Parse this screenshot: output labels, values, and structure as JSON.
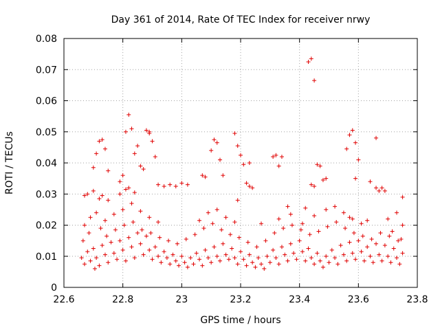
{
  "chart_data": {
    "type": "scatter",
    "title": "Day 361 of 2014, Rate Of TEC Index for receiver nrwy",
    "xlabel": "GPS time / hours",
    "ylabel": "ROTI / TECUs",
    "xlim": [
      22.6,
      23.8
    ],
    "ylim": [
      0,
      0.08
    ],
    "xticks": [
      22.6,
      22.8,
      23.0,
      23.2,
      23.4,
      23.6,
      23.8
    ],
    "xtick_labels": [
      "22.6",
      "22.8",
      "23",
      "23.2",
      "23.4",
      "23.6",
      "23.8"
    ],
    "yticks": [
      0,
      0.01,
      0.02,
      0.03,
      0.04,
      0.05,
      0.06,
      0.07,
      0.08
    ],
    "ytick_labels": [
      "0",
      "0.01",
      "0.02",
      "0.03",
      "0.04",
      "0.05",
      "0.06",
      "0.07",
      "0.08"
    ],
    "grid": true,
    "marker": "+",
    "color": "#e00000",
    "series": [
      {
        "name": "ROTI",
        "points": [
          [
            22.66,
            0.0095
          ],
          [
            22.67,
            0.0075
          ],
          [
            22.68,
            0.0115
          ],
          [
            22.69,
            0.0085
          ],
          [
            22.7,
            0.0125
          ],
          [
            22.71,
            0.0095
          ],
          [
            22.72,
            0.007
          ],
          [
            22.73,
            0.0135
          ],
          [
            22.74,
            0.0105
          ],
          [
            22.75,
            0.008
          ],
          [
            22.76,
            0.0145
          ],
          [
            22.77,
            0.011
          ],
          [
            22.78,
            0.009
          ],
          [
            22.79,
            0.015
          ],
          [
            22.8,
            0.012
          ],
          [
            22.81,
            0.0085
          ],
          [
            22.82,
            0.016
          ],
          [
            22.83,
            0.013
          ],
          [
            22.84,
            0.0095
          ],
          [
            22.85,
            0.0175
          ],
          [
            22.86,
            0.014
          ],
          [
            22.87,
            0.0105
          ],
          [
            22.88,
            0.0165
          ],
          [
            22.89,
            0.012
          ],
          [
            22.9,
            0.009
          ],
          [
            22.91,
            0.013
          ],
          [
            22.92,
            0.01
          ],
          [
            22.93,
            0.008
          ],
          [
            22.94,
            0.0115
          ],
          [
            22.95,
            0.0095
          ],
          [
            22.96,
            0.0075
          ],
          [
            22.97,
            0.0105
          ],
          [
            22.98,
            0.0085
          ],
          [
            22.99,
            0.007
          ],
          [
            23.0,
            0.01
          ],
          [
            23.01,
            0.008
          ],
          [
            23.02,
            0.0065
          ],
          [
            23.03,
            0.0095
          ],
          [
            23.04,
            0.0075
          ],
          [
            23.05,
            0.011
          ],
          [
            23.06,
            0.009
          ],
          [
            23.07,
            0.007
          ],
          [
            23.08,
            0.012
          ],
          [
            23.09,
            0.0095
          ],
          [
            23.1,
            0.008
          ],
          [
            23.11,
            0.013
          ],
          [
            23.12,
            0.01
          ],
          [
            23.13,
            0.0085
          ],
          [
            23.14,
            0.014
          ],
          [
            23.15,
            0.0105
          ],
          [
            23.16,
            0.009
          ],
          [
            23.17,
            0.0125
          ],
          [
            23.18,
            0.0095
          ],
          [
            23.19,
            0.0075
          ],
          [
            23.2,
            0.0115
          ],
          [
            23.21,
            0.009
          ],
          [
            23.22,
            0.007
          ],
          [
            23.23,
            0.0105
          ],
          [
            23.24,
            0.008
          ],
          [
            23.25,
            0.0065
          ],
          [
            23.26,
            0.0095
          ],
          [
            23.27,
            0.0075
          ],
          [
            23.28,
            0.006
          ],
          [
            23.29,
            0.01
          ],
          [
            23.3,
            0.008
          ],
          [
            23.31,
            0.012
          ],
          [
            23.32,
            0.0095
          ],
          [
            23.33,
            0.0075
          ],
          [
            23.34,
            0.013
          ],
          [
            23.35,
            0.0105
          ],
          [
            23.36,
            0.0085
          ],
          [
            23.37,
            0.014
          ],
          [
            23.38,
            0.011
          ],
          [
            23.39,
            0.009
          ],
          [
            23.4,
            0.015
          ],
          [
            23.41,
            0.0115
          ],
          [
            23.42,
            0.0085
          ],
          [
            23.43,
            0.0125
          ],
          [
            23.44,
            0.0095
          ],
          [
            23.45,
            0.0075
          ],
          [
            23.46,
            0.011
          ],
          [
            23.47,
            0.0085
          ],
          [
            23.48,
            0.0065
          ],
          [
            23.49,
            0.01
          ],
          [
            23.5,
            0.008
          ],
          [
            23.51,
            0.012
          ],
          [
            23.52,
            0.0095
          ],
          [
            23.53,
            0.0075
          ],
          [
            23.54,
            0.0135
          ],
          [
            23.55,
            0.0105
          ],
          [
            23.56,
            0.0085
          ],
          [
            23.57,
            0.0145
          ],
          [
            23.58,
            0.011
          ],
          [
            23.59,
            0.009
          ],
          [
            23.6,
            0.015
          ],
          [
            23.61,
            0.0115
          ],
          [
            23.62,
            0.0085
          ],
          [
            23.63,
            0.013
          ],
          [
            23.64,
            0.01
          ],
          [
            23.65,
            0.008
          ],
          [
            23.66,
            0.014
          ],
          [
            23.67,
            0.0105
          ],
          [
            23.68,
            0.0085
          ],
          [
            23.69,
            0.0135
          ],
          [
            23.7,
            0.01
          ],
          [
            23.71,
            0.008
          ],
          [
            23.72,
            0.0125
          ],
          [
            23.73,
            0.0095
          ],
          [
            23.74,
            0.0075
          ],
          [
            23.75,
            0.011
          ],
          [
            22.665,
            0.015
          ],
          [
            22.685,
            0.0175
          ],
          [
            22.705,
            0.006
          ],
          [
            22.725,
            0.019
          ],
          [
            22.745,
            0.0165
          ],
          [
            22.775,
            0.0185
          ],
          [
            22.805,
            0.02
          ],
          [
            22.835,
            0.021
          ],
          [
            22.865,
            0.0185
          ],
          [
            22.895,
            0.0175
          ],
          [
            22.925,
            0.016
          ],
          [
            22.955,
            0.015
          ],
          [
            22.985,
            0.014
          ],
          [
            23.015,
            0.0155
          ],
          [
            23.045,
            0.017
          ],
          [
            23.075,
            0.019
          ],
          [
            23.105,
            0.0205
          ],
          [
            23.135,
            0.0185
          ],
          [
            23.165,
            0.017
          ],
          [
            23.195,
            0.016
          ],
          [
            23.225,
            0.0145
          ],
          [
            23.255,
            0.013
          ],
          [
            23.285,
            0.015
          ],
          [
            23.315,
            0.0175
          ],
          [
            23.345,
            0.019
          ],
          [
            23.375,
            0.02
          ],
          [
            23.405,
            0.0185
          ],
          [
            23.435,
            0.017
          ],
          [
            23.465,
            0.018
          ],
          [
            23.495,
            0.0195
          ],
          [
            23.525,
            0.021
          ],
          [
            23.555,
            0.019
          ],
          [
            23.585,
            0.0175
          ],
          [
            23.615,
            0.0165
          ],
          [
            23.645,
            0.0155
          ],
          [
            23.675,
            0.0175
          ],
          [
            23.705,
            0.0165
          ],
          [
            23.735,
            0.015
          ],
          [
            23.745,
            0.0155
          ],
          [
            23.715,
            0.018
          ],
          [
            22.67,
            0.02
          ],
          [
            22.69,
            0.0225
          ],
          [
            22.71,
            0.024
          ],
          [
            22.74,
            0.0215
          ],
          [
            22.77,
            0.0235
          ],
          [
            22.8,
            0.025
          ],
          [
            22.83,
            0.027
          ],
          [
            22.86,
            0.0245
          ],
          [
            22.89,
            0.0225
          ],
          [
            22.92,
            0.021
          ],
          [
            23.06,
            0.0215
          ],
          [
            23.09,
            0.024
          ],
          [
            23.12,
            0.025
          ],
          [
            23.15,
            0.0225
          ],
          [
            23.18,
            0.021
          ],
          [
            23.33,
            0.022
          ],
          [
            23.37,
            0.0235
          ],
          [
            23.41,
            0.0205
          ],
          [
            23.45,
            0.023
          ],
          [
            23.49,
            0.025
          ],
          [
            23.52,
            0.026
          ],
          [
            23.55,
            0.024
          ],
          [
            23.58,
            0.022
          ],
          [
            23.61,
            0.0205
          ],
          [
            23.7,
            0.022
          ],
          [
            23.73,
            0.024
          ],
          [
            23.75,
            0.02
          ],
          [
            23.57,
            0.0225
          ],
          [
            23.63,
            0.0215
          ],
          [
            23.27,
            0.0205
          ],
          [
            22.67,
            0.0295
          ],
          [
            22.68,
            0.03
          ],
          [
            22.7,
            0.031
          ],
          [
            22.72,
            0.0285
          ],
          [
            22.73,
            0.0295
          ],
          [
            22.75,
            0.028
          ],
          [
            22.79,
            0.03
          ],
          [
            22.81,
            0.0315
          ],
          [
            22.82,
            0.032
          ],
          [
            22.84,
            0.0305
          ],
          [
            22.92,
            0.033
          ],
          [
            22.94,
            0.0325
          ],
          [
            22.96,
            0.033
          ],
          [
            22.98,
            0.0325
          ],
          [
            23.0,
            0.0335
          ],
          [
            23.02,
            0.033
          ],
          [
            23.07,
            0.036
          ],
          [
            23.08,
            0.0355
          ],
          [
            23.14,
            0.036
          ],
          [
            23.22,
            0.0335
          ],
          [
            23.23,
            0.0325
          ],
          [
            23.24,
            0.032
          ],
          [
            23.44,
            0.033
          ],
          [
            23.45,
            0.0325
          ],
          [
            23.48,
            0.0345
          ],
          [
            23.59,
            0.035
          ],
          [
            23.64,
            0.034
          ],
          [
            23.66,
            0.032
          ],
          [
            23.67,
            0.031
          ],
          [
            23.75,
            0.029
          ],
          [
            22.71,
            0.043
          ],
          [
            22.72,
            0.047
          ],
          [
            22.73,
            0.0475
          ],
          [
            22.74,
            0.0445
          ],
          [
            22.75,
            0.0375
          ],
          [
            22.7,
            0.0385
          ],
          [
            22.79,
            0.034
          ],
          [
            22.8,
            0.036
          ],
          [
            22.81,
            0.05
          ],
          [
            22.82,
            0.0555
          ],
          [
            22.83,
            0.051
          ],
          [
            22.84,
            0.043
          ],
          [
            22.85,
            0.0455
          ],
          [
            22.86,
            0.039
          ],
          [
            22.87,
            0.038
          ],
          [
            22.88,
            0.0505
          ],
          [
            22.89,
            0.0495
          ],
          [
            22.9,
            0.047
          ],
          [
            22.91,
            0.042
          ],
          [
            22.89,
            0.05
          ],
          [
            23.11,
            0.0475
          ],
          [
            23.12,
            0.0465
          ],
          [
            23.13,
            0.041
          ],
          [
            23.1,
            0.044
          ],
          [
            23.18,
            0.0495
          ],
          [
            23.19,
            0.0455
          ],
          [
            23.2,
            0.0425
          ],
          [
            23.21,
            0.0395
          ],
          [
            23.23,
            0.04
          ],
          [
            23.31,
            0.042
          ],
          [
            23.32,
            0.0425
          ],
          [
            23.34,
            0.042
          ],
          [
            23.33,
            0.039
          ],
          [
            23.43,
            0.0725
          ],
          [
            23.44,
            0.0735
          ],
          [
            23.45,
            0.0665
          ],
          [
            23.46,
            0.0395
          ],
          [
            23.47,
            0.039
          ],
          [
            23.49,
            0.035
          ],
          [
            23.56,
            0.0445
          ],
          [
            23.57,
            0.049
          ],
          [
            23.58,
            0.0505
          ],
          [
            23.59,
            0.0465
          ],
          [
            23.6,
            0.041
          ],
          [
            23.66,
            0.048
          ],
          [
            23.68,
            0.032
          ],
          [
            23.69,
            0.031
          ],
          [
            23.42,
            0.0255
          ],
          [
            23.36,
            0.026
          ],
          [
            23.19,
            0.028
          ]
        ]
      }
    ]
  }
}
